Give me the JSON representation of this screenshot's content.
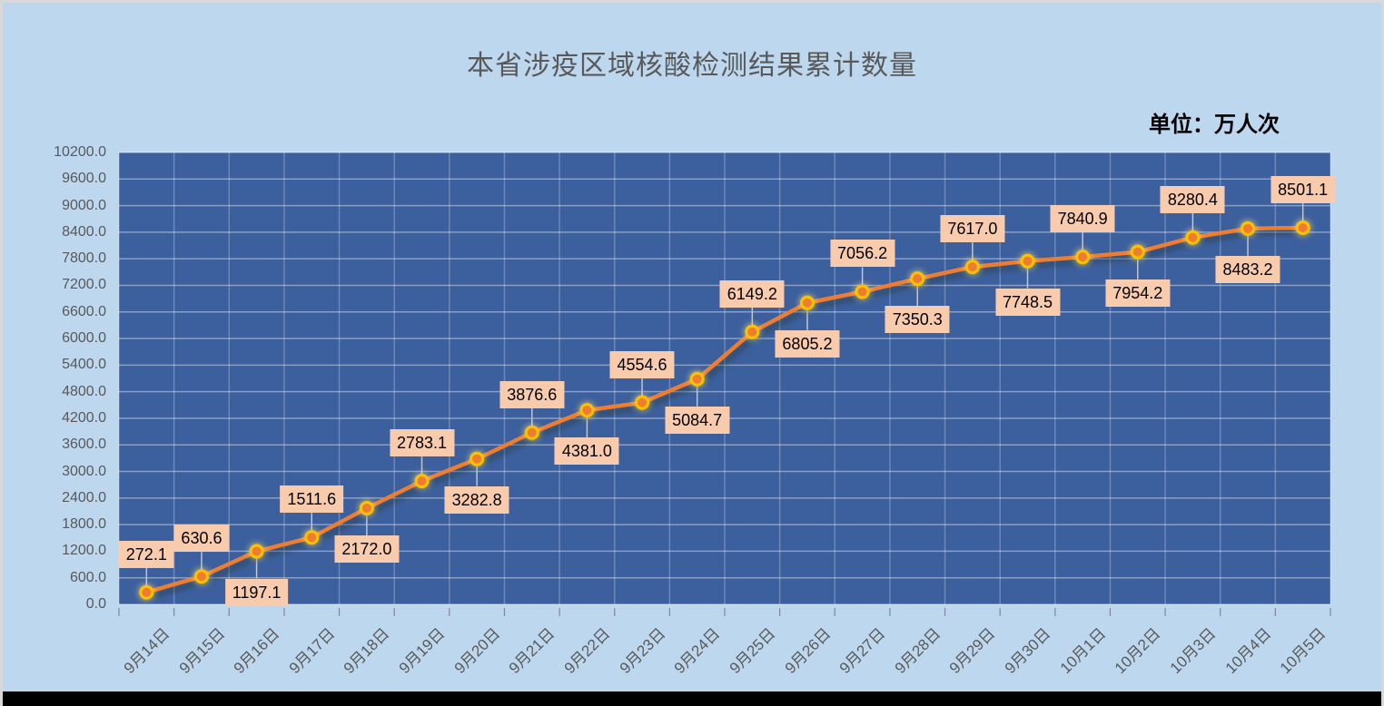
{
  "chart_data": {
    "type": "line",
    "title": "本省涉疫区域核酸检测结果累计数量",
    "unit_label": "单位：万人次",
    "categories": [
      "9月14日",
      "9月15日",
      "9月16日",
      "9月17日",
      "9月18日",
      "9月19日",
      "9月20日",
      "9月21日",
      "9月22日",
      "9月23日",
      "9月24日",
      "9月25日",
      "9月26日",
      "9月27日",
      "9月28日",
      "9月29日",
      "9月30日",
      "10月1日",
      "10月2日",
      "10月3日",
      "10月4日",
      "10月5日"
    ],
    "values": [
      272.1,
      630.6,
      1197.1,
      1511.6,
      2172.0,
      2783.1,
      3282.8,
      3876.6,
      4381.0,
      4554.6,
      5084.7,
      6149.2,
      6805.2,
      7056.2,
      7350.3,
      7617.0,
      7748.5,
      7840.9,
      7954.2,
      8280.4,
      8483.2,
      8501.1
    ],
    "labels": [
      "272.1",
      "630.6",
      "1197.1",
      "1511.6",
      "2172.0",
      "2783.1",
      "3282.8",
      "3876.6",
      "4381.0",
      "4554.6",
      "5084.7",
      "6149.2",
      "6805.2",
      "7056.2",
      "7350.3",
      "7617.0",
      "7748.5",
      "7840.9",
      "7954.2",
      "8280.4",
      "8483.2",
      "8501.1"
    ],
    "yticks": [
      "0.0",
      "600.0",
      "1200.0",
      "1800.0",
      "2400.0",
      "3000.0",
      "3600.0",
      "4200.0",
      "4800.0",
      "5400.0",
      "6000.0",
      "6600.0",
      "7200.0",
      "7800.0",
      "8400.0",
      "9000.0",
      "9600.0",
      "10200.0"
    ],
    "ylim": [
      0,
      10200
    ],
    "ytick_step": 600,
    "grid": true,
    "legend": "none",
    "colors": {
      "page_bg": "#bdd7ee",
      "plot_bg": "#3c5f9e",
      "line": "#ed7d31",
      "marker_fill": "#ed7d31",
      "marker_ring": "#ffc000",
      "label_bg": "#f8cbad",
      "label_text": "#000000",
      "axis_text": "#595959",
      "grid_h": "rgba(255,255,255,0.40)",
      "grid_v": "rgba(255,255,255,0.25)",
      "leader": "#c0c6d0",
      "tick_mark": "#80889a",
      "bottom_bar": "#000000"
    }
  }
}
